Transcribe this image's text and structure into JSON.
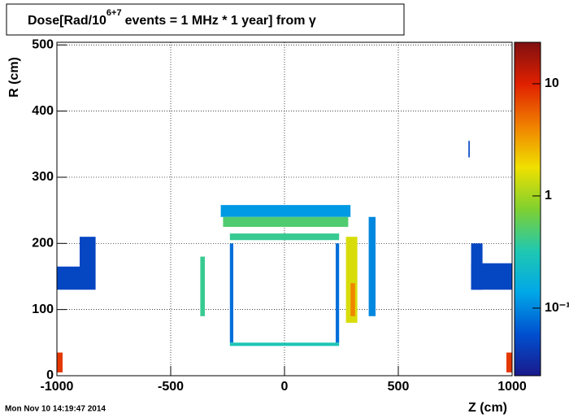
{
  "chart_data": {
    "type": "heatmap",
    "title_parts": [
      "Dose[Rad/10",
      "6+7",
      "events = 1 MHz * 1 year] from γ"
    ],
    "x_label": "Z (cm)",
    "y_label": "R (cm)",
    "timestamp": "Mon Nov 10 14:19:47 2014",
    "xlim": [
      -1000,
      1000
    ],
    "xticks": [
      -1000,
      -500,
      0,
      500,
      1000
    ],
    "ylim": [
      0,
      504
    ],
    "yticks": [
      0,
      100,
      200,
      300,
      400,
      500
    ],
    "grid": true,
    "zlim": [
      0.025,
      23.4
    ],
    "zscale": "log",
    "zticks": [
      {
        "value": 0.1,
        "label": "10⁻¹"
      },
      1,
      10
    ],
    "palette": [
      "#1a1a8c",
      "#0050d0",
      "#00a8e8",
      "#20c8b0",
      "#80d030",
      "#f0e000",
      "#f08000",
      "#e02000",
      "#801010"
    ],
    "regions": [
      {
        "z": [
          -1000,
          -900
        ],
        "r": [
          130,
          165
        ],
        "value": 0.05
      },
      {
        "z": [
          -900,
          -830
        ],
        "r": [
          130,
          210
        ],
        "value": 0.05
      },
      {
        "z": [
          820,
          1000
        ],
        "r": [
          130,
          170
        ],
        "value": 0.05
      },
      {
        "z": [
          820,
          870
        ],
        "r": [
          130,
          200
        ],
        "value": 0.05
      },
      {
        "z": [
          -280,
          290
        ],
        "r": [
          240,
          258
        ],
        "value": 0.12
      },
      {
        "z": [
          -270,
          280
        ],
        "r": [
          225,
          240
        ],
        "value": 0.5
      },
      {
        "z": [
          -240,
          240
        ],
        "r": [
          205,
          215
        ],
        "value": 0.4
      },
      {
        "z": [
          -370,
          -350
        ],
        "r": [
          90,
          180
        ],
        "value": 0.4
      },
      {
        "z": [
          270,
          320
        ],
        "r": [
          80,
          210
        ],
        "value": 1.5
      },
      {
        "z": [
          290,
          310
        ],
        "r": [
          90,
          140
        ],
        "value": 4
      },
      {
        "z": [
          370,
          400
        ],
        "r": [
          90,
          240
        ],
        "value": 0.1
      },
      {
        "z": [
          -240,
          -225
        ],
        "r": [
          50,
          200
        ],
        "value": 0.08
      },
      {
        "z": [
          225,
          240
        ],
        "r": [
          50,
          200
        ],
        "value": 0.08
      },
      {
        "z": [
          -240,
          240
        ],
        "r": [
          45,
          50
        ],
        "value": 0.3
      },
      {
        "z": [
          -1000,
          -975
        ],
        "r": [
          5,
          35
        ],
        "value": 8
      },
      {
        "z": [
          975,
          1000
        ],
        "r": [
          5,
          35
        ],
        "value": 8
      },
      {
        "z": [
          808,
          814
        ],
        "r": [
          330,
          355
        ],
        "value": 0.05
      }
    ]
  }
}
